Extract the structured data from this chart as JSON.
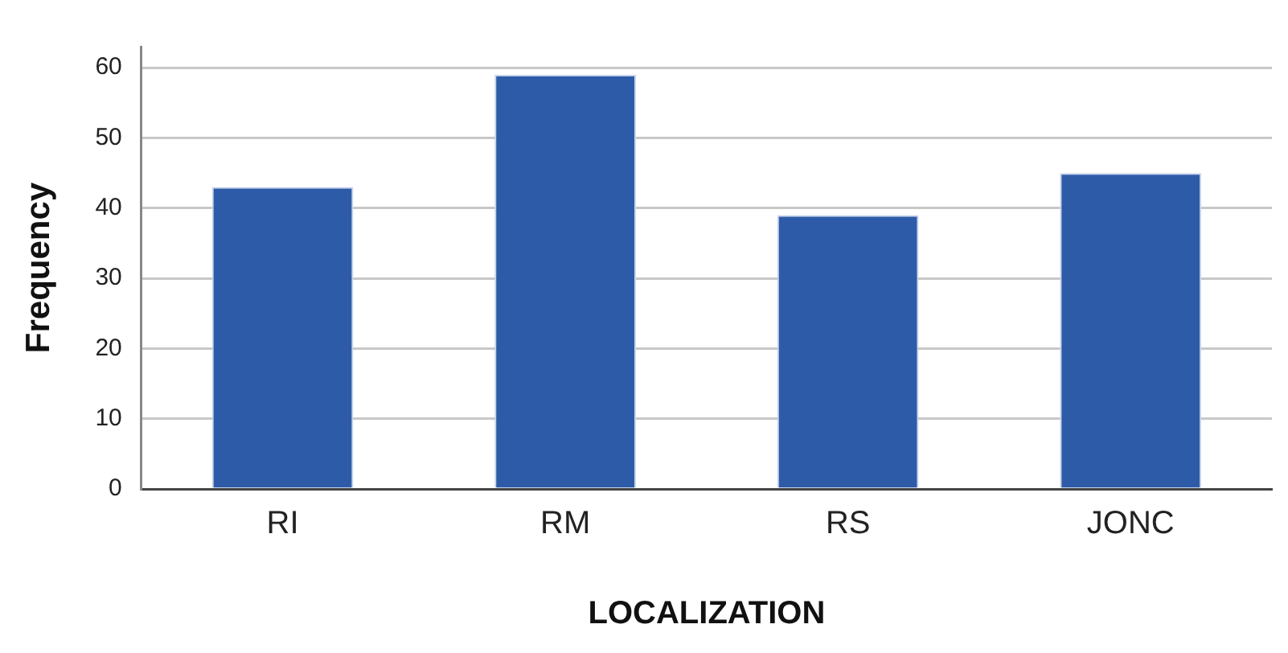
{
  "chart_data": {
    "type": "bar",
    "xlabel": "LOCALIZATION",
    "ylabel": "Frequency",
    "categories": [
      "RI",
      "RM",
      "RS",
      "JONC"
    ],
    "values": [
      43,
      59,
      39,
      45
    ],
    "color": "#2e5ba8",
    "ylim": [
      0,
      63
    ],
    "yticks": [
      0,
      10,
      20,
      30,
      40,
      50,
      60
    ],
    "grid": "y",
    "legend": false
  }
}
